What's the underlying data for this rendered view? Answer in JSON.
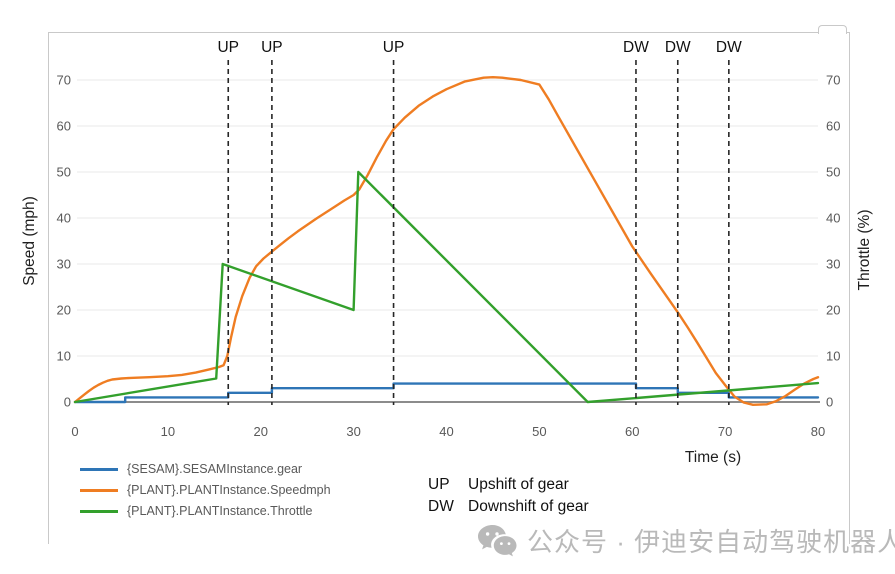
{
  "watermark": {
    "icon": "wechat-icon",
    "text": "公众号 · 伊迪安自动驾驶机器人"
  },
  "annotations": {
    "up": {
      "abbr": "UP",
      "label": "Upshift of gear"
    },
    "dw": {
      "abbr": "DW",
      "label": "Downshift of gear"
    }
  },
  "colors": {
    "gear": "#2e75b6",
    "speed": "#ef7d22",
    "throttle": "#33a02c",
    "grid": "#e8e8e8",
    "zero_axis": "#8c8c8c",
    "tick_text": "#595959",
    "axis_title": "#1f1f1f",
    "event_line": "#262626",
    "card_border": "#c9c9c9",
    "watermark": "#b9b9b9"
  },
  "chart_data": {
    "type": "line",
    "title": "",
    "xlabel": "Time (s)",
    "ylabel_left": "Speed (mph)",
    "ylabel_right": "Throttle (%)",
    "xlim": [
      0,
      80
    ],
    "ylim": [
      -1,
      72.5
    ],
    "xticks": [
      0,
      10,
      20,
      30,
      40,
      50,
      60,
      70,
      80
    ],
    "yticks_left": [
      0,
      10,
      20,
      30,
      40,
      50,
      60,
      70
    ],
    "yticks_right": [
      0,
      10,
      20,
      30,
      40,
      50,
      60,
      70
    ],
    "grid": true,
    "legend_position": "bottom-left",
    "series": [
      {
        "name": "{SESAM}.SESAMInstance.gear",
        "color_key": "gear",
        "points": [
          [
            0,
            0
          ],
          [
            5.4,
            0
          ],
          [
            5.4,
            1
          ],
          [
            16.5,
            1
          ],
          [
            16.5,
            2
          ],
          [
            21.2,
            2
          ],
          [
            21.2,
            3
          ],
          [
            34.3,
            3
          ],
          [
            34.3,
            4
          ],
          [
            60.4,
            4
          ],
          [
            60.4,
            3
          ],
          [
            64.9,
            3
          ],
          [
            64.9,
            2
          ],
          [
            70.4,
            2
          ],
          [
            70.4,
            1
          ],
          [
            80,
            1
          ]
        ]
      },
      {
        "name": "{PLANT}.PLANTInstance.Speedmph",
        "color_key": "speed",
        "points": [
          [
            0,
            0
          ],
          [
            0.5,
            0.8
          ],
          [
            1,
            1.6
          ],
          [
            1.5,
            2.4
          ],
          [
            2,
            3.1
          ],
          [
            2.5,
            3.7
          ],
          [
            3,
            4.2
          ],
          [
            3.5,
            4.6
          ],
          [
            4,
            4.9
          ],
          [
            5,
            5.1
          ],
          [
            6,
            5.25
          ],
          [
            8,
            5.4
          ],
          [
            10,
            5.6
          ],
          [
            11.5,
            5.9
          ],
          [
            13,
            6.4
          ],
          [
            14.5,
            7.1
          ],
          [
            15.5,
            7.6
          ],
          [
            16,
            8
          ],
          [
            16.4,
            10
          ],
          [
            16.8,
            14
          ],
          [
            17.3,
            18.5
          ],
          [
            18,
            23
          ],
          [
            18.8,
            27
          ],
          [
            19.5,
            29.5
          ],
          [
            20.3,
            31.2
          ],
          [
            21.2,
            32.7
          ],
          [
            22,
            34
          ],
          [
            23,
            35.6
          ],
          [
            24,
            37.1
          ],
          [
            25,
            38.5
          ],
          [
            26,
            39.9
          ],
          [
            27,
            41.2
          ],
          [
            28,
            42.5
          ],
          [
            29,
            43.8
          ],
          [
            30,
            45
          ],
          [
            30.6,
            46.2
          ],
          [
            31.5,
            49.3
          ],
          [
            32.5,
            53.2
          ],
          [
            33.5,
            56.8
          ],
          [
            34.3,
            59.3
          ],
          [
            35.5,
            61.8
          ],
          [
            37,
            64.4
          ],
          [
            38.5,
            66.4
          ],
          [
            40,
            68
          ],
          [
            42,
            69.7
          ],
          [
            44,
            70.5
          ],
          [
            45,
            70.6
          ],
          [
            46,
            70.5
          ],
          [
            48,
            70
          ],
          [
            50,
            69
          ],
          [
            51,
            65.8
          ],
          [
            52,
            62.2
          ],
          [
            54,
            55.1
          ],
          [
            56,
            48
          ],
          [
            58,
            40.9
          ],
          [
            60,
            33.8
          ],
          [
            62,
            27.9
          ],
          [
            64,
            22.1
          ],
          [
            65,
            19.2
          ],
          [
            66,
            16.1
          ],
          [
            67,
            12.9
          ],
          [
            68,
            9.6
          ],
          [
            69,
            6.3
          ],
          [
            70,
            3.7
          ],
          [
            71,
            1.2
          ],
          [
            72,
            -0.1
          ],
          [
            73,
            -0.6
          ],
          [
            74.5,
            -0.5
          ],
          [
            75.5,
            0.2
          ],
          [
            76.5,
            1.3
          ],
          [
            77.5,
            2.7
          ],
          [
            78.5,
            4
          ],
          [
            79.5,
            5
          ],
          [
            80,
            5.4
          ]
        ]
      },
      {
        "name": "{PLANT}.PLANTInstance.Throttle",
        "color_key": "throttle",
        "points": [
          [
            0,
            0
          ],
          [
            15.2,
            5.1
          ],
          [
            15.9,
            30
          ],
          [
            30,
            20
          ],
          [
            30.5,
            50
          ],
          [
            55.2,
            0
          ],
          [
            80,
            4.1
          ]
        ]
      }
    ],
    "events": [
      {
        "time": 16.5,
        "label": "UP"
      },
      {
        "time": 21.2,
        "label": "UP"
      },
      {
        "time": 34.3,
        "label": "UP"
      },
      {
        "time": 60.4,
        "label": "DW"
      },
      {
        "time": 64.9,
        "label": "DW"
      },
      {
        "time": 70.4,
        "label": "DW"
      }
    ]
  }
}
